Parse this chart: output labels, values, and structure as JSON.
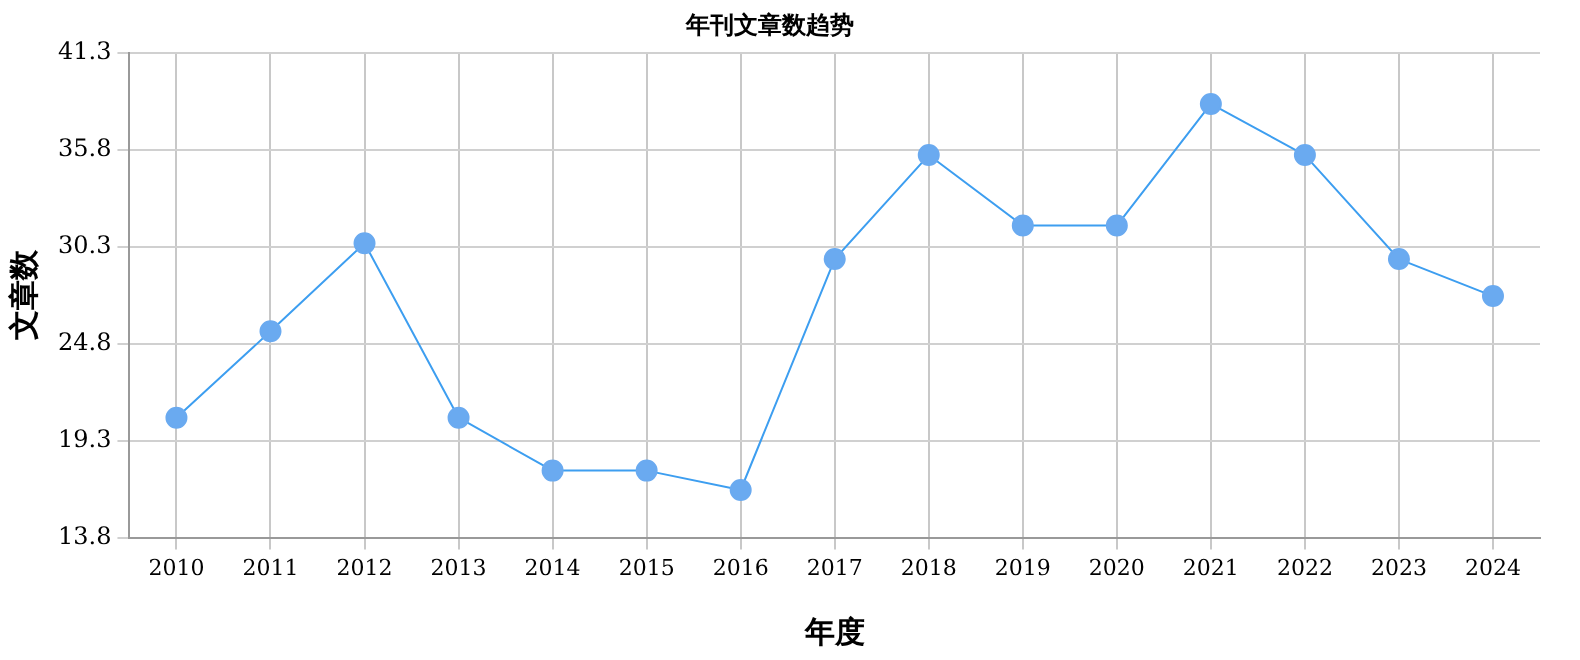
{
  "chart_data": {
    "type": "line",
    "title": "年刊文章数趋势",
    "xlabel": "年度",
    "ylabel": "文章数",
    "categories": [
      "2010",
      "2011",
      "2012",
      "2013",
      "2014",
      "2015",
      "2016",
      "2017",
      "2018",
      "2019",
      "2020",
      "2021",
      "2022",
      "2023",
      "2024"
    ],
    "series": [
      {
        "color": "#3d9ef0",
        "values": [
          20.6,
          25.5,
          30.5,
          20.6,
          17.6,
          17.6,
          16.5,
          29.6,
          35.5,
          31.5,
          31.5,
          38.4,
          35.5,
          29.6,
          27.5
        ]
      }
    ],
    "ylim": [
      13.8,
      41.3
    ],
    "yticks": [
      13.8,
      19.3,
      24.8,
      30.3,
      35.8,
      41.3
    ],
    "grid": true,
    "legend": false,
    "marker": "circle"
  }
}
